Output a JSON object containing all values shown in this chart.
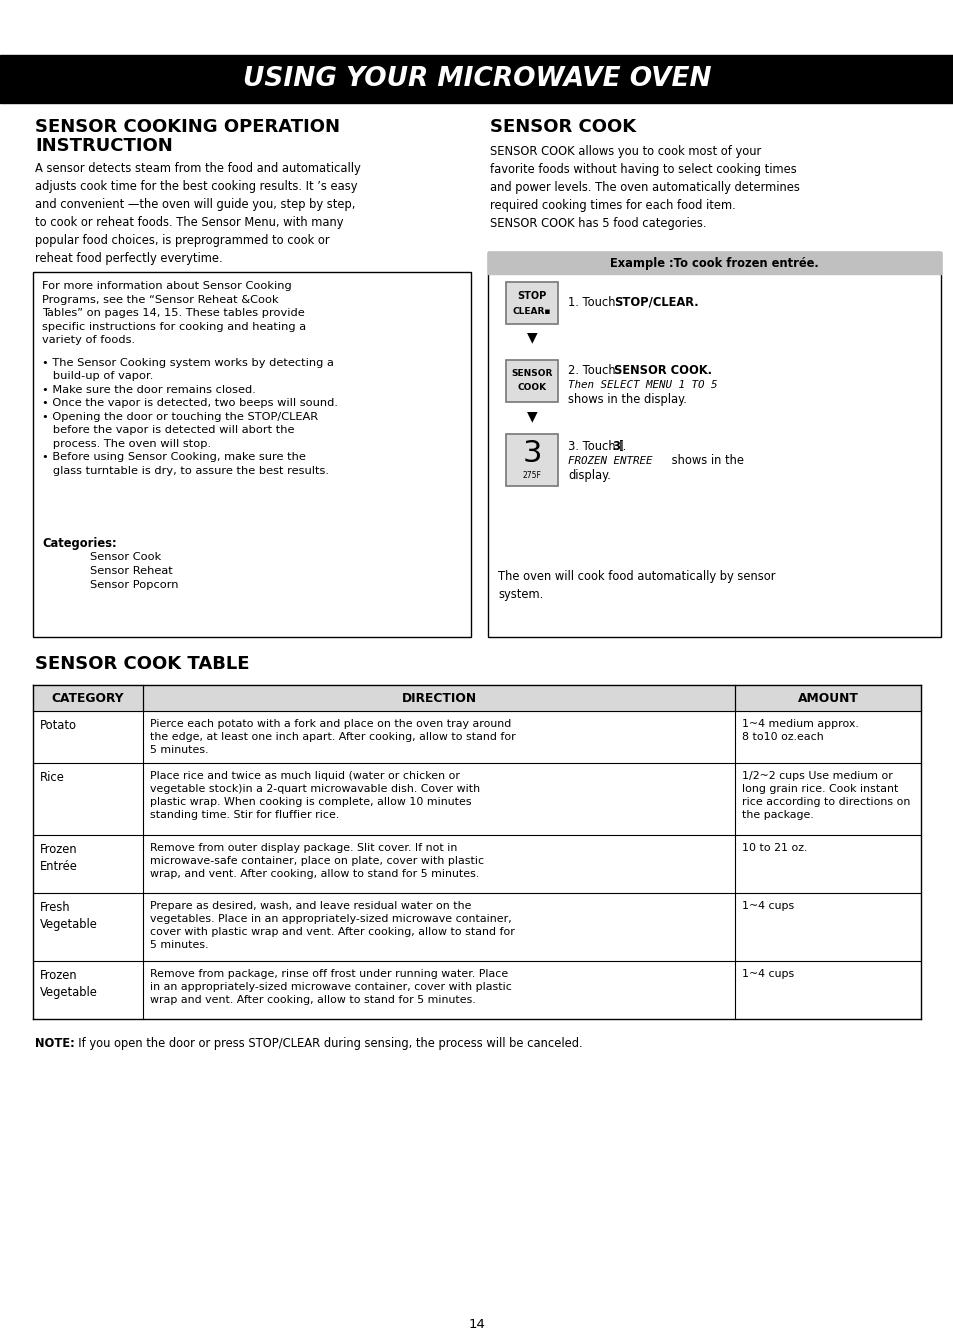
{
  "page_bg": "#ffffff",
  "header_bg": "#000000",
  "header_text": "USING YOUR MICROWAVE OVEN",
  "header_text_color": "#ffffff",
  "table_headers": [
    "CATEGORY",
    "DIRECTION",
    "AMOUNT"
  ],
  "table_rows": [
    {
      "category": "Potato",
      "direction": "Pierce each potato with a fork and place on the oven tray around\nthe edge, at least one inch apart. After cooking, allow to stand for\n5 minutes.",
      "amount": "1~4 medium approx.\n8 to10 oz.each"
    },
    {
      "category": "Rice",
      "direction": "Place rice and twice as much liquid (water or chicken or\nvegetable stock)in a 2-quart microwavable dish. Cover with\nplastic wrap. When cooking is complete, allow 10 minutes\nstanding time. Stir for fluffier rice.",
      "amount": "1/2~2 cups Use medium or\nlong grain rice. Cook instant\nrice according to directions on\nthe package."
    },
    {
      "category": "Frozen\nEntrée",
      "direction": "Remove from outer display package. Slit cover. If not in\nmicrowave-safe container, place on plate, cover with plastic\nwrap, and vent. After cooking, allow to stand for 5 minutes.",
      "amount": "10 to 21 oz."
    },
    {
      "category": "Fresh\nVegetable",
      "direction": "Prepare as desired, wash, and leave residual water on the\nvegetables. Place in an appropriately-sized microwave container,\ncover with plastic wrap and vent. After cooking, allow to stand for\n5 minutes.",
      "amount": "1~4 cups"
    },
    {
      "category": "Frozen\nVegetable",
      "direction": "Remove from package, rinse off frost under running water. Place\nin an appropriately-sized microwave container, cover with plastic\nwrap and vent. After cooking, allow to stand for 5 minutes.",
      "amount": "1~4 cups"
    }
  ],
  "note_bold": "NOTE:",
  "note_rest": "  If you open the door or press STOP/CLEAR during sensing, the process will be canceled.",
  "page_number": "14"
}
